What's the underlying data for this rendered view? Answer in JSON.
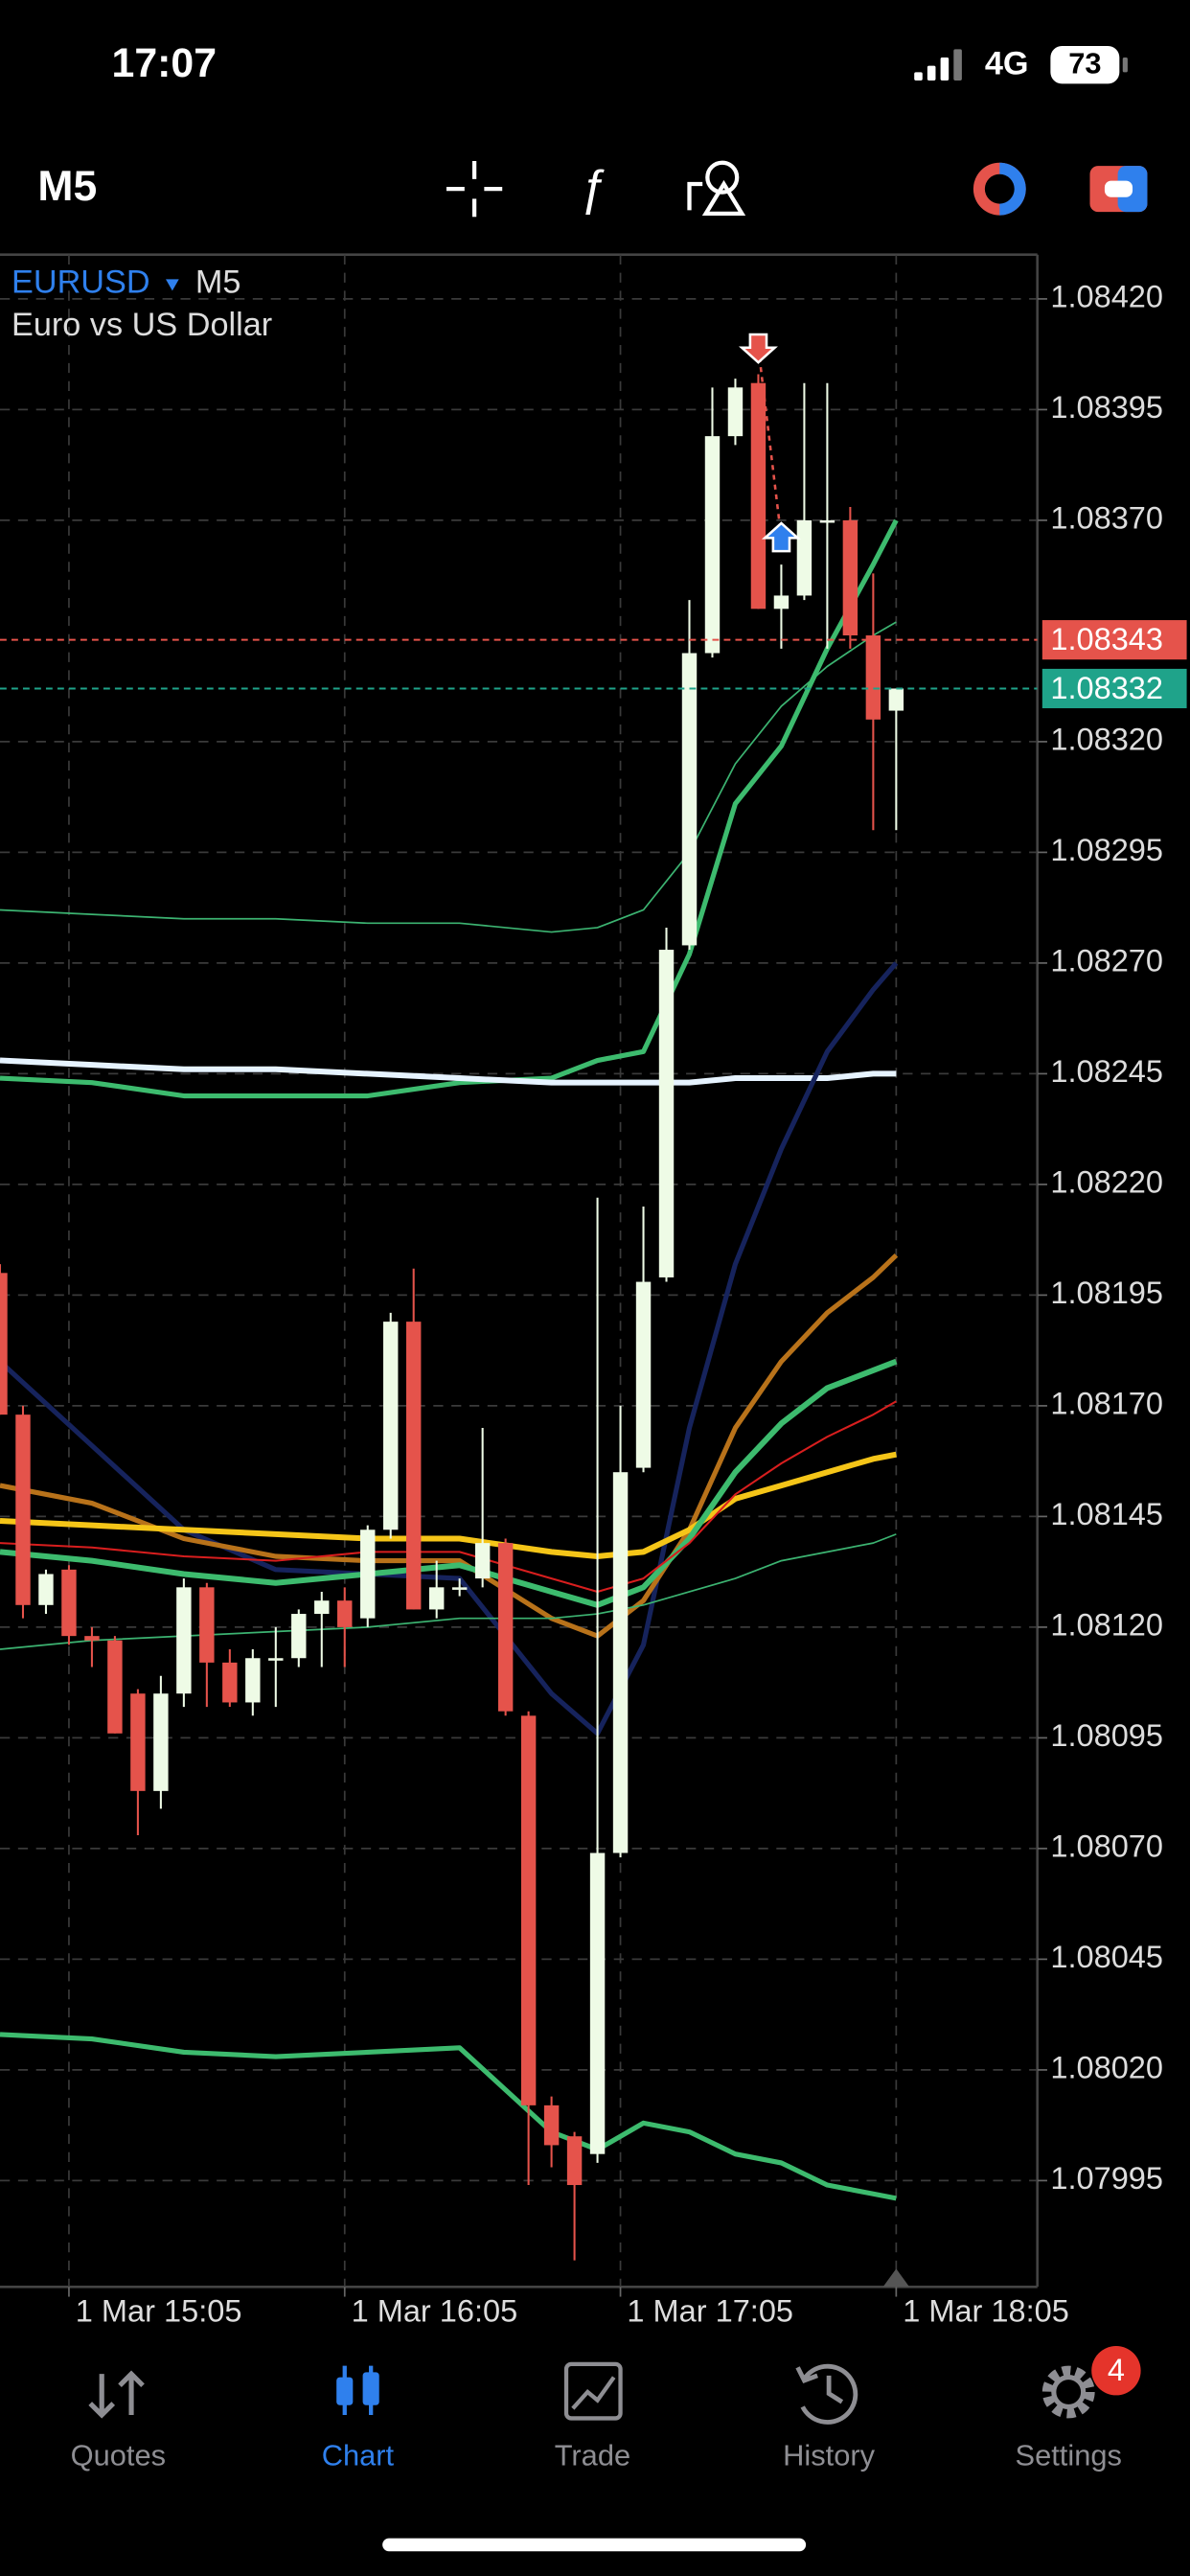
{
  "status_bar": {
    "time": "17:07",
    "network": "4G",
    "battery": "73"
  },
  "toolbar": {
    "timeframe": "M5"
  },
  "chart_data": {
    "type": "candlestick",
    "symbol": "EURUSD",
    "timeframe": "M5",
    "description": "Euro vs US Dollar",
    "categories": [
      null,
      null,
      null,
      "1 Mar 15:05",
      null,
      null,
      null,
      null,
      null,
      null,
      null,
      null,
      null,
      null,
      null,
      "1 Mar 16:05",
      null,
      null,
      null,
      null,
      null,
      null,
      null,
      null,
      null,
      null,
      null,
      "1 Mar 17:05",
      null,
      null,
      null,
      null,
      null,
      null,
      null,
      null,
      null,
      null,
      null,
      "1 Mar 18:05"
    ],
    "open": [
      1.082,
      1.08168,
      1.08125,
      1.08133,
      1.08118,
      1.08117,
      1.08105,
      1.08083,
      1.08105,
      1.08129,
      1.08112,
      1.08103,
      1.08113,
      1.08113,
      1.08123,
      1.08126,
      1.08122,
      1.08142,
      1.08189,
      1.08124,
      1.08129,
      1.08131,
      1.08139,
      1.081,
      1.08012,
      1.08005,
      1.08001,
      1.08069,
      1.08156,
      1.08199,
      1.08274,
      1.0834,
      1.08389,
      1.08401,
      1.0835,
      1.08353,
      1.0837,
      1.0837,
      1.08344,
      1.08327
    ],
    "high": [
      1.08202,
      1.0817,
      1.08133,
      1.08134,
      1.0812,
      1.08118,
      1.08106,
      1.08109,
      1.08131,
      1.0813,
      1.08115,
      1.08115,
      1.0812,
      1.08124,
      1.08128,
      1.08129,
      1.08143,
      1.08191,
      1.08201,
      1.08135,
      1.08131,
      1.08165,
      1.0814,
      1.08101,
      1.08014,
      1.08006,
      1.08217,
      1.0817,
      1.08215,
      1.08278,
      1.08352,
      1.084,
      1.08402,
      1.08403,
      1.0836,
      1.08401,
      1.08401,
      1.08373,
      1.08358,
      1.08332
    ],
    "low": [
      1.08168,
      1.08122,
      1.08123,
      1.08116,
      1.08111,
      1.08096,
      1.08073,
      1.08079,
      1.08102,
      1.08102,
      1.08102,
      1.081,
      1.08102,
      1.08111,
      1.08111,
      1.08111,
      1.0812,
      1.0814,
      1.08124,
      1.08122,
      1.08127,
      1.08129,
      1.081,
      1.07994,
      1.07998,
      1.07977,
      1.07999,
      1.08068,
      1.08155,
      1.08198,
      1.08273,
      1.08339,
      1.08387,
      1.0835,
      1.08341,
      1.08352,
      1.08341,
      1.08341,
      1.083,
      1.083
    ],
    "close": [
      1.08168,
      1.08125,
      1.08132,
      1.08118,
      1.08117,
      1.08096,
      1.08083,
      1.08105,
      1.08129,
      1.08112,
      1.08103,
      1.08113,
      1.08113,
      1.08123,
      1.08126,
      1.0812,
      1.08142,
      1.08189,
      1.08124,
      1.08129,
      1.08129,
      1.08139,
      1.08101,
      1.08012,
      1.08003,
      1.07994,
      1.08069,
      1.08155,
      1.08198,
      1.08273,
      1.0834,
      1.08389,
      1.084,
      1.0835,
      1.08353,
      1.0837,
      1.0837,
      1.08344,
      1.08325,
      1.08332
    ],
    "up_color": "#eefbe6",
    "down_color": "#e5534b",
    "overlay_x": [
      0,
      4,
      8,
      12,
      16,
      20,
      24,
      26,
      28,
      30,
      32,
      34,
      36,
      38,
      39
    ],
    "overlays": [
      {
        "color": "#3cb371",
        "width": 1,
        "values": [
          1.08282,
          1.08281,
          1.0828,
          1.0828,
          1.08279,
          1.08279,
          1.08277,
          1.08278,
          1.08282,
          1.08295,
          1.08315,
          1.08328,
          1.08337,
          1.08344,
          1.08347
        ]
      },
      {
        "color": "#3dbb6e",
        "width": 3,
        "values": [
          1.08244,
          1.08243,
          1.0824,
          1.0824,
          1.0824,
          1.08243,
          1.08244,
          1.08248,
          1.0825,
          1.08272,
          1.08306,
          1.08319,
          1.08341,
          1.0836,
          1.0837
        ]
      },
      {
        "color": "#e6f3ff",
        "width": 3.5,
        "values": [
          1.08248,
          1.08247,
          1.08246,
          1.08246,
          1.08245,
          1.08244,
          1.08243,
          1.08243,
          1.08243,
          1.08243,
          1.08244,
          1.08244,
          1.08244,
          1.08245,
          1.08245
        ]
      },
      {
        "color": "#16235c",
        "width": 3,
        "values": [
          1.0818,
          1.08161,
          1.08142,
          1.08133,
          1.08132,
          1.08131,
          1.08105,
          1.08096,
          1.08116,
          1.08165,
          1.08202,
          1.08228,
          1.0825,
          1.08264,
          1.0827
        ]
      },
      {
        "color": "#b8721a",
        "width": 3,
        "values": [
          1.08152,
          1.08148,
          1.0814,
          1.08136,
          1.08135,
          1.08135,
          1.08122,
          1.08118,
          1.08126,
          1.08142,
          1.08165,
          1.0818,
          1.08191,
          1.08199,
          1.08204
        ]
      },
      {
        "color": "#f5c518",
        "width": 3.5,
        "values": [
          1.08144,
          1.08143,
          1.08142,
          1.08141,
          1.0814,
          1.0814,
          1.08137,
          1.08136,
          1.08137,
          1.08142,
          1.08149,
          1.08152,
          1.08155,
          1.08158,
          1.08159
        ]
      },
      {
        "color": "#3dbb6e",
        "width": 3.5,
        "values": [
          1.08137,
          1.08135,
          1.08132,
          1.0813,
          1.08132,
          1.08134,
          1.08128,
          1.08125,
          1.08129,
          1.0814,
          1.08155,
          1.08166,
          1.08174,
          1.08178,
          1.0818
        ]
      },
      {
        "color": "#d81e1e",
        "width": 1.2,
        "values": [
          1.08139,
          1.08138,
          1.08136,
          1.08135,
          1.08137,
          1.08137,
          1.08131,
          1.08128,
          1.08131,
          1.08139,
          1.0815,
          1.08157,
          1.08163,
          1.08168,
          1.08171
        ]
      },
      {
        "color": "#3cb371",
        "width": 1,
        "values": [
          1.08115,
          1.08117,
          1.08118,
          1.08119,
          1.0812,
          1.08122,
          1.08122,
          1.08123,
          1.08125,
          1.08128,
          1.08131,
          1.08135,
          1.08137,
          1.08139,
          1.08141
        ]
      },
      {
        "color": "#3dbb6e",
        "width": 3,
        "values": [
          1.08028,
          1.08027,
          1.08024,
          1.08023,
          1.08024,
          1.08025,
          1.08006,
          1.08002,
          1.08008,
          1.08006,
          1.08001,
          1.07999,
          1.07994,
          1.07992,
          1.07991
        ]
      }
    ],
    "hlines": [
      {
        "value": 1.08343,
        "color": "#e5534b"
      },
      {
        "value": 1.08332,
        "color": "#1fa38a"
      }
    ],
    "trades": [
      {
        "side": "sell",
        "index": 33,
        "price": 1.08409,
        "color": "#e5534b"
      },
      {
        "side": "buy",
        "index": 34,
        "price": 1.08366,
        "color": "#2f80ed"
      }
    ],
    "ylim": [
      1.07971,
      1.0843
    ],
    "yticks": [
      {
        "value": 1.0842,
        "label": "1.08420"
      },
      1.08395,
      {
        "value": 1.0837,
        "label": "1.08370"
      },
      {
        "value": 1.0832,
        "label": "1.08320"
      },
      1.08295,
      {
        "value": 1.0827,
        "label": "1.08270"
      },
      1.08245,
      {
        "value": 1.0822,
        "label": "1.08220"
      },
      1.08195,
      {
        "value": 1.0817,
        "label": "1.08170"
      },
      1.08145,
      {
        "value": 1.0812,
        "label": "1.08120"
      },
      1.08095,
      {
        "value": 1.0807,
        "label": "1.08070"
      },
      1.08045,
      {
        "value": 1.0802,
        "label": "1.08020"
      },
      1.07995
    ],
    "grid": true
  },
  "tab_bar": {
    "tabs": [
      {
        "label": "Quotes"
      },
      {
        "label": "Chart",
        "active": true
      },
      {
        "label": "Trade"
      },
      {
        "label": "History"
      },
      {
        "label": "Settings",
        "badge": 4
      }
    ]
  }
}
